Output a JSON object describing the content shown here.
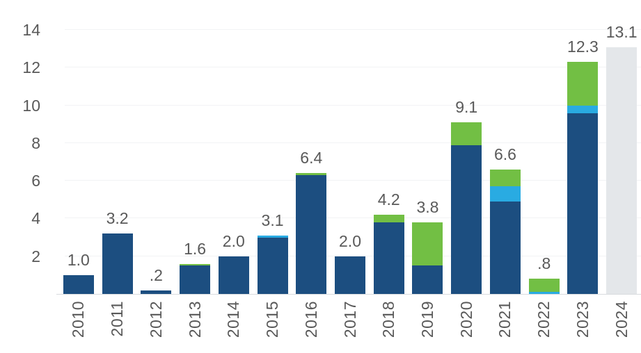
{
  "chart_data": {
    "type": "bar",
    "stacked": true,
    "categories": [
      "2010",
      "2011",
      "2012",
      "2013",
      "2014",
      "2015",
      "2016",
      "2017",
      "2018",
      "2019",
      "2020",
      "2021",
      "2022",
      "2023",
      "2024"
    ],
    "bar_labels": [
      "1.0",
      "3.2",
      ".2",
      "1.6",
      "2.0",
      "3.1",
      "6.4",
      "2.0",
      "4.2",
      "3.8",
      "9.1",
      "6.6",
      ".8",
      "12.3",
      "13.1"
    ],
    "totals": [
      1.0,
      3.2,
      0.2,
      1.6,
      2.0,
      3.1,
      6.4,
      2.0,
      4.2,
      3.8,
      9.1,
      6.6,
      0.8,
      12.3,
      13.1
    ],
    "series": [
      {
        "name": "dark-blue",
        "color": "#1c4e80",
        "values": [
          1.0,
          3.2,
          0.2,
          1.5,
          2.0,
          3.0,
          6.3,
          2.0,
          3.8,
          1.5,
          7.9,
          4.9,
          0,
          9.6,
          0
        ]
      },
      {
        "name": "light-blue",
        "color": "#29abe2",
        "values": [
          0,
          0,
          0,
          0,
          0,
          0.1,
          0,
          0,
          0,
          0,
          0,
          0.8,
          0.1,
          0.4,
          0
        ]
      },
      {
        "name": "green",
        "color": "#72bf44",
        "values": [
          0,
          0,
          0,
          0.1,
          0,
          0,
          0.1,
          0,
          0.4,
          2.3,
          1.2,
          0.9,
          0.7,
          2.3,
          0
        ]
      },
      {
        "name": "gray",
        "color": "#e4e7ea",
        "values": [
          0,
          0,
          0,
          0,
          0,
          0,
          0,
          0,
          0,
          0,
          0,
          0,
          0,
          0,
          13.1
        ]
      }
    ],
    "y_axis": {
      "ticks": [
        "2",
        "4",
        "6",
        "8",
        "10",
        "12",
        "14"
      ],
      "min": 0,
      "max": 14.3
    },
    "grid": true,
    "legend": false,
    "styles": {
      "text_color": "#595959",
      "gridline_color": "#f2f3f5",
      "axis_line_color": "#d8dbde",
      "background": "#ffffff"
    }
  }
}
